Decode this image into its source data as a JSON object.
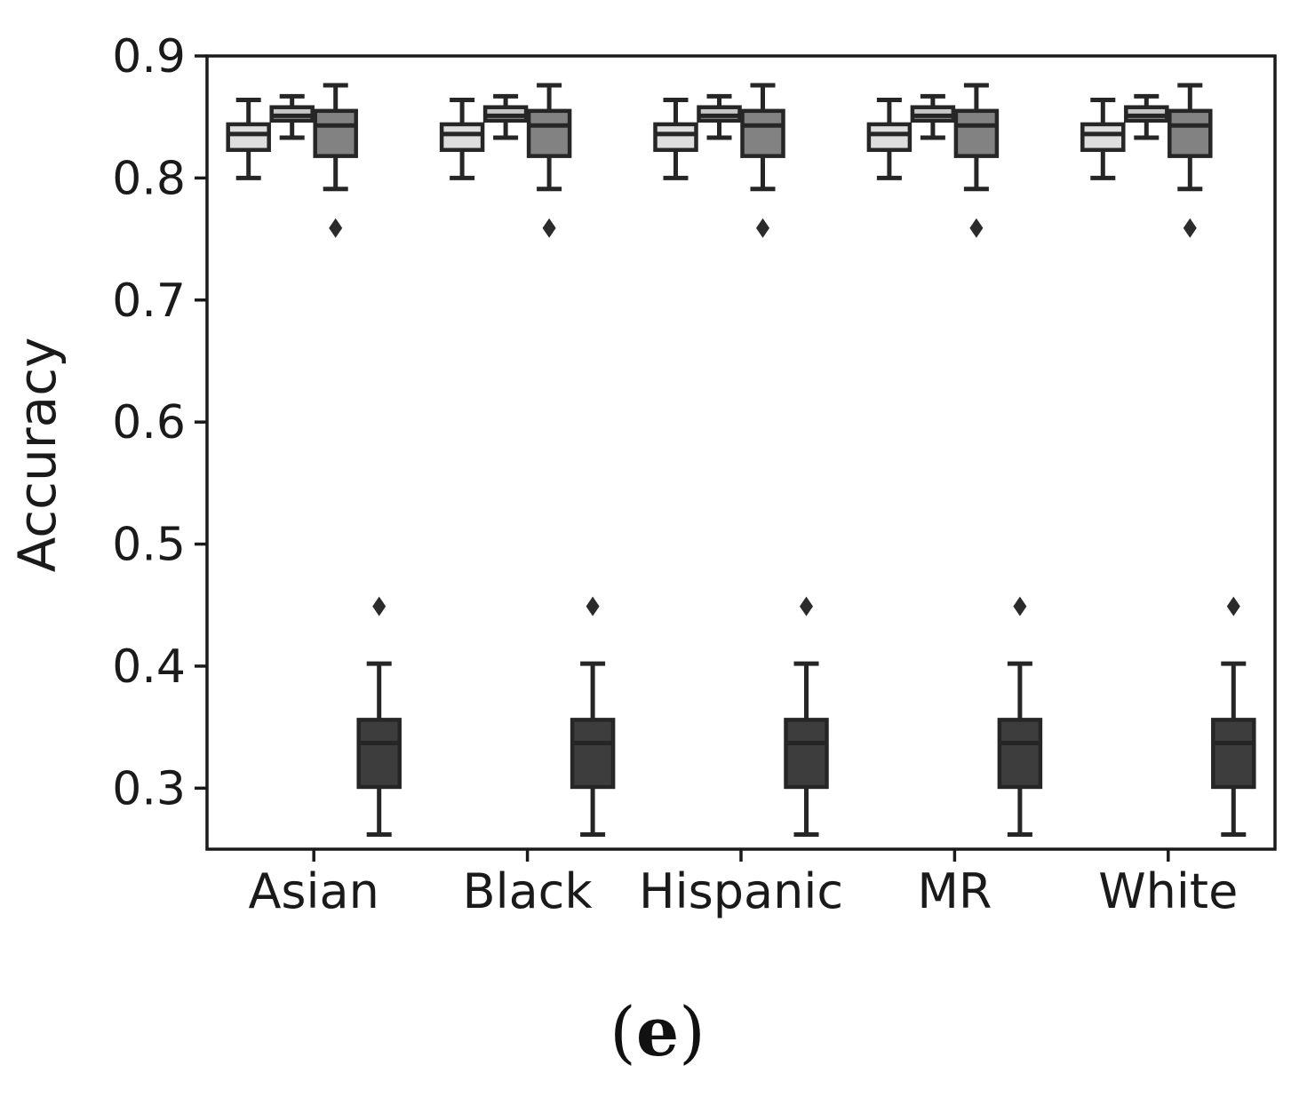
{
  "figure": {
    "ylabel": "Accuracy",
    "caption": {
      "open": "(",
      "letter": "e",
      "close": ")"
    }
  },
  "chart_data": {
    "type": "box",
    "title": "",
    "xlabel": "",
    "ylabel": "Accuracy",
    "categories": [
      "Asian",
      "Black",
      "Hispanic",
      "MR",
      "White"
    ],
    "ylim": [
      0.25,
      0.9
    ],
    "yticks": [
      0.3,
      0.4,
      0.5,
      0.6,
      0.7,
      0.8,
      0.9
    ],
    "ytick_labels": [
      "0.3",
      "0.4",
      "0.5",
      "0.6",
      "0.7",
      "0.8",
      "0.9"
    ],
    "grid": false,
    "legend": null,
    "colors": {
      "edge": "#262626",
      "spine": "#1a1a1a",
      "flier": "#2b2b2b",
      "text": "#1a1a1a"
    },
    "note": "Each category shows four box-and-whisker plots; distributions are visually identical across all five categories.",
    "series": [
      {
        "name": "box-series-1",
        "fill": "#dedede",
        "per_category": [
          {
            "whislo": 0.8,
            "q1": 0.823,
            "med": 0.836,
            "q3": 0.844,
            "whishi": 0.864,
            "fliers": []
          },
          {
            "whislo": 0.8,
            "q1": 0.823,
            "med": 0.836,
            "q3": 0.844,
            "whishi": 0.864,
            "fliers": []
          },
          {
            "whislo": 0.8,
            "q1": 0.823,
            "med": 0.836,
            "q3": 0.844,
            "whishi": 0.864,
            "fliers": []
          },
          {
            "whislo": 0.8,
            "q1": 0.823,
            "med": 0.836,
            "q3": 0.844,
            "whishi": 0.864,
            "fliers": []
          },
          {
            "whislo": 0.8,
            "q1": 0.823,
            "med": 0.836,
            "q3": 0.844,
            "whishi": 0.864,
            "fliers": []
          }
        ]
      },
      {
        "name": "box-series-2",
        "fill": "#c7c7c7",
        "per_category": [
          {
            "whislo": 0.833,
            "q1": 0.847,
            "med": 0.851,
            "q3": 0.858,
            "whishi": 0.867,
            "fliers": []
          },
          {
            "whislo": 0.833,
            "q1": 0.847,
            "med": 0.851,
            "q3": 0.858,
            "whishi": 0.867,
            "fliers": []
          },
          {
            "whislo": 0.833,
            "q1": 0.847,
            "med": 0.851,
            "q3": 0.858,
            "whishi": 0.867,
            "fliers": []
          },
          {
            "whislo": 0.833,
            "q1": 0.847,
            "med": 0.851,
            "q3": 0.858,
            "whishi": 0.867,
            "fliers": []
          },
          {
            "whislo": 0.833,
            "q1": 0.847,
            "med": 0.851,
            "q3": 0.858,
            "whishi": 0.867,
            "fliers": []
          }
        ]
      },
      {
        "name": "box-series-3",
        "fill": "#828282",
        "per_category": [
          {
            "whislo": 0.791,
            "q1": 0.818,
            "med": 0.843,
            "q3": 0.855,
            "whishi": 0.876,
            "fliers": [
              0.759
            ]
          },
          {
            "whislo": 0.791,
            "q1": 0.818,
            "med": 0.843,
            "q3": 0.855,
            "whishi": 0.876,
            "fliers": [
              0.759
            ]
          },
          {
            "whislo": 0.791,
            "q1": 0.818,
            "med": 0.843,
            "q3": 0.855,
            "whishi": 0.876,
            "fliers": [
              0.759
            ]
          },
          {
            "whislo": 0.791,
            "q1": 0.818,
            "med": 0.843,
            "q3": 0.855,
            "whishi": 0.876,
            "fliers": [
              0.759
            ]
          },
          {
            "whislo": 0.791,
            "q1": 0.818,
            "med": 0.843,
            "q3": 0.855,
            "whishi": 0.876,
            "fliers": [
              0.759
            ]
          }
        ]
      },
      {
        "name": "box-series-4",
        "fill": "#3d3d3d",
        "per_category": [
          {
            "whislo": 0.262,
            "q1": 0.301,
            "med": 0.337,
            "q3": 0.356,
            "whishi": 0.402,
            "fliers": [
              0.449
            ]
          },
          {
            "whislo": 0.262,
            "q1": 0.301,
            "med": 0.337,
            "q3": 0.356,
            "whishi": 0.402,
            "fliers": [
              0.449
            ]
          },
          {
            "whislo": 0.262,
            "q1": 0.301,
            "med": 0.337,
            "q3": 0.356,
            "whishi": 0.402,
            "fliers": [
              0.449
            ]
          },
          {
            "whislo": 0.262,
            "q1": 0.301,
            "med": 0.337,
            "q3": 0.356,
            "whishi": 0.402,
            "fliers": [
              0.449
            ]
          },
          {
            "whislo": 0.262,
            "q1": 0.301,
            "med": 0.337,
            "q3": 0.356,
            "whishi": 0.402,
            "fliers": [
              0.449
            ]
          }
        ]
      }
    ]
  }
}
